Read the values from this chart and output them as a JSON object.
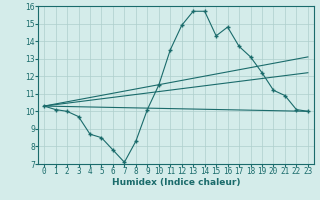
{
  "xlabel": "Humidex (Indice chaleur)",
  "ylabel": "",
  "xlim": [
    -0.5,
    23.5
  ],
  "ylim": [
    7,
    16
  ],
  "xticks": [
    0,
    1,
    2,
    3,
    4,
    5,
    6,
    7,
    8,
    9,
    10,
    11,
    12,
    13,
    14,
    15,
    16,
    17,
    18,
    19,
    20,
    21,
    22,
    23
  ],
  "yticks": [
    7,
    8,
    9,
    10,
    11,
    12,
    13,
    14,
    15,
    16
  ],
  "bg_color": "#d4ecea",
  "line_color": "#1a6b6b",
  "grid_color": "#aecfcc",
  "line1_x": [
    0,
    1,
    2,
    3,
    4,
    5,
    6,
    7,
    8,
    9,
    10,
    11,
    12,
    13,
    14,
    15,
    16,
    17,
    18,
    19,
    20,
    21,
    22,
    23
  ],
  "line1_y": [
    10.3,
    10.1,
    10.0,
    9.7,
    8.7,
    8.5,
    7.8,
    7.1,
    8.3,
    10.1,
    11.5,
    13.5,
    14.9,
    15.7,
    15.7,
    14.3,
    14.8,
    13.7,
    13.1,
    12.2,
    11.2,
    10.9,
    10.1,
    10.0
  ],
  "line2_x": [
    0,
    23
  ],
  "line2_y": [
    10.3,
    13.1
  ],
  "line3_x": [
    0,
    23
  ],
  "line3_y": [
    10.3,
    12.2
  ],
  "line4_x": [
    0,
    23
  ],
  "line4_y": [
    10.3,
    10.0
  ]
}
